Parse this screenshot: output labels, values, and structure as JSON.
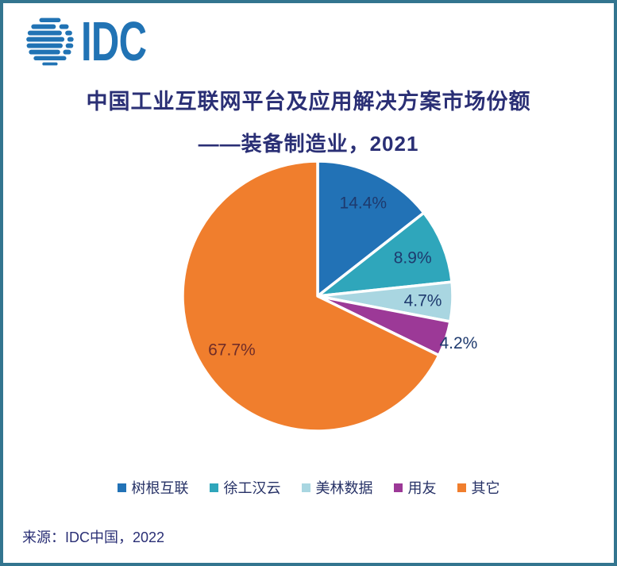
{
  "logo": {
    "text": "IDC",
    "color": "#2173B4"
  },
  "title": {
    "line1": "中国工业互联网平台及应用解决方案市场份额",
    "line2": "——装备制造业，2021"
  },
  "source": {
    "text": "来源：IDC中国，2022"
  },
  "frame_color": "#33758F",
  "chart_data": {
    "type": "pie",
    "title": "中国工业互联网平台及应用解决方案市场份额——装备制造业，2021",
    "categories": [
      "树根互联",
      "徐工汉云",
      "美林数据",
      "用友",
      "其它"
    ],
    "values": [
      14.4,
      8.9,
      4.7,
      4.2,
      67.7
    ],
    "labels": [
      "14.4%",
      "8.9%",
      "4.7%",
      "4.2%",
      "67.7%"
    ],
    "colors": [
      "#2272B6",
      "#2FA6BB",
      "#A9D6E1",
      "#9C3997",
      "#F07E2D"
    ],
    "label_colors": [
      "#1E3A6E",
      "#1E3A6E",
      "#1E3A6E",
      "#1E3A6E",
      "#702D28"
    ],
    "label_radius": [
      0.77,
      0.76,
      0.78,
      1.1,
      0.75
    ],
    "start_angle_deg": 0,
    "direction": "clockwise",
    "legend_position": "bottom",
    "slice_border_color": "#FFFFFF",
    "slice_border_width": 3.5
  }
}
